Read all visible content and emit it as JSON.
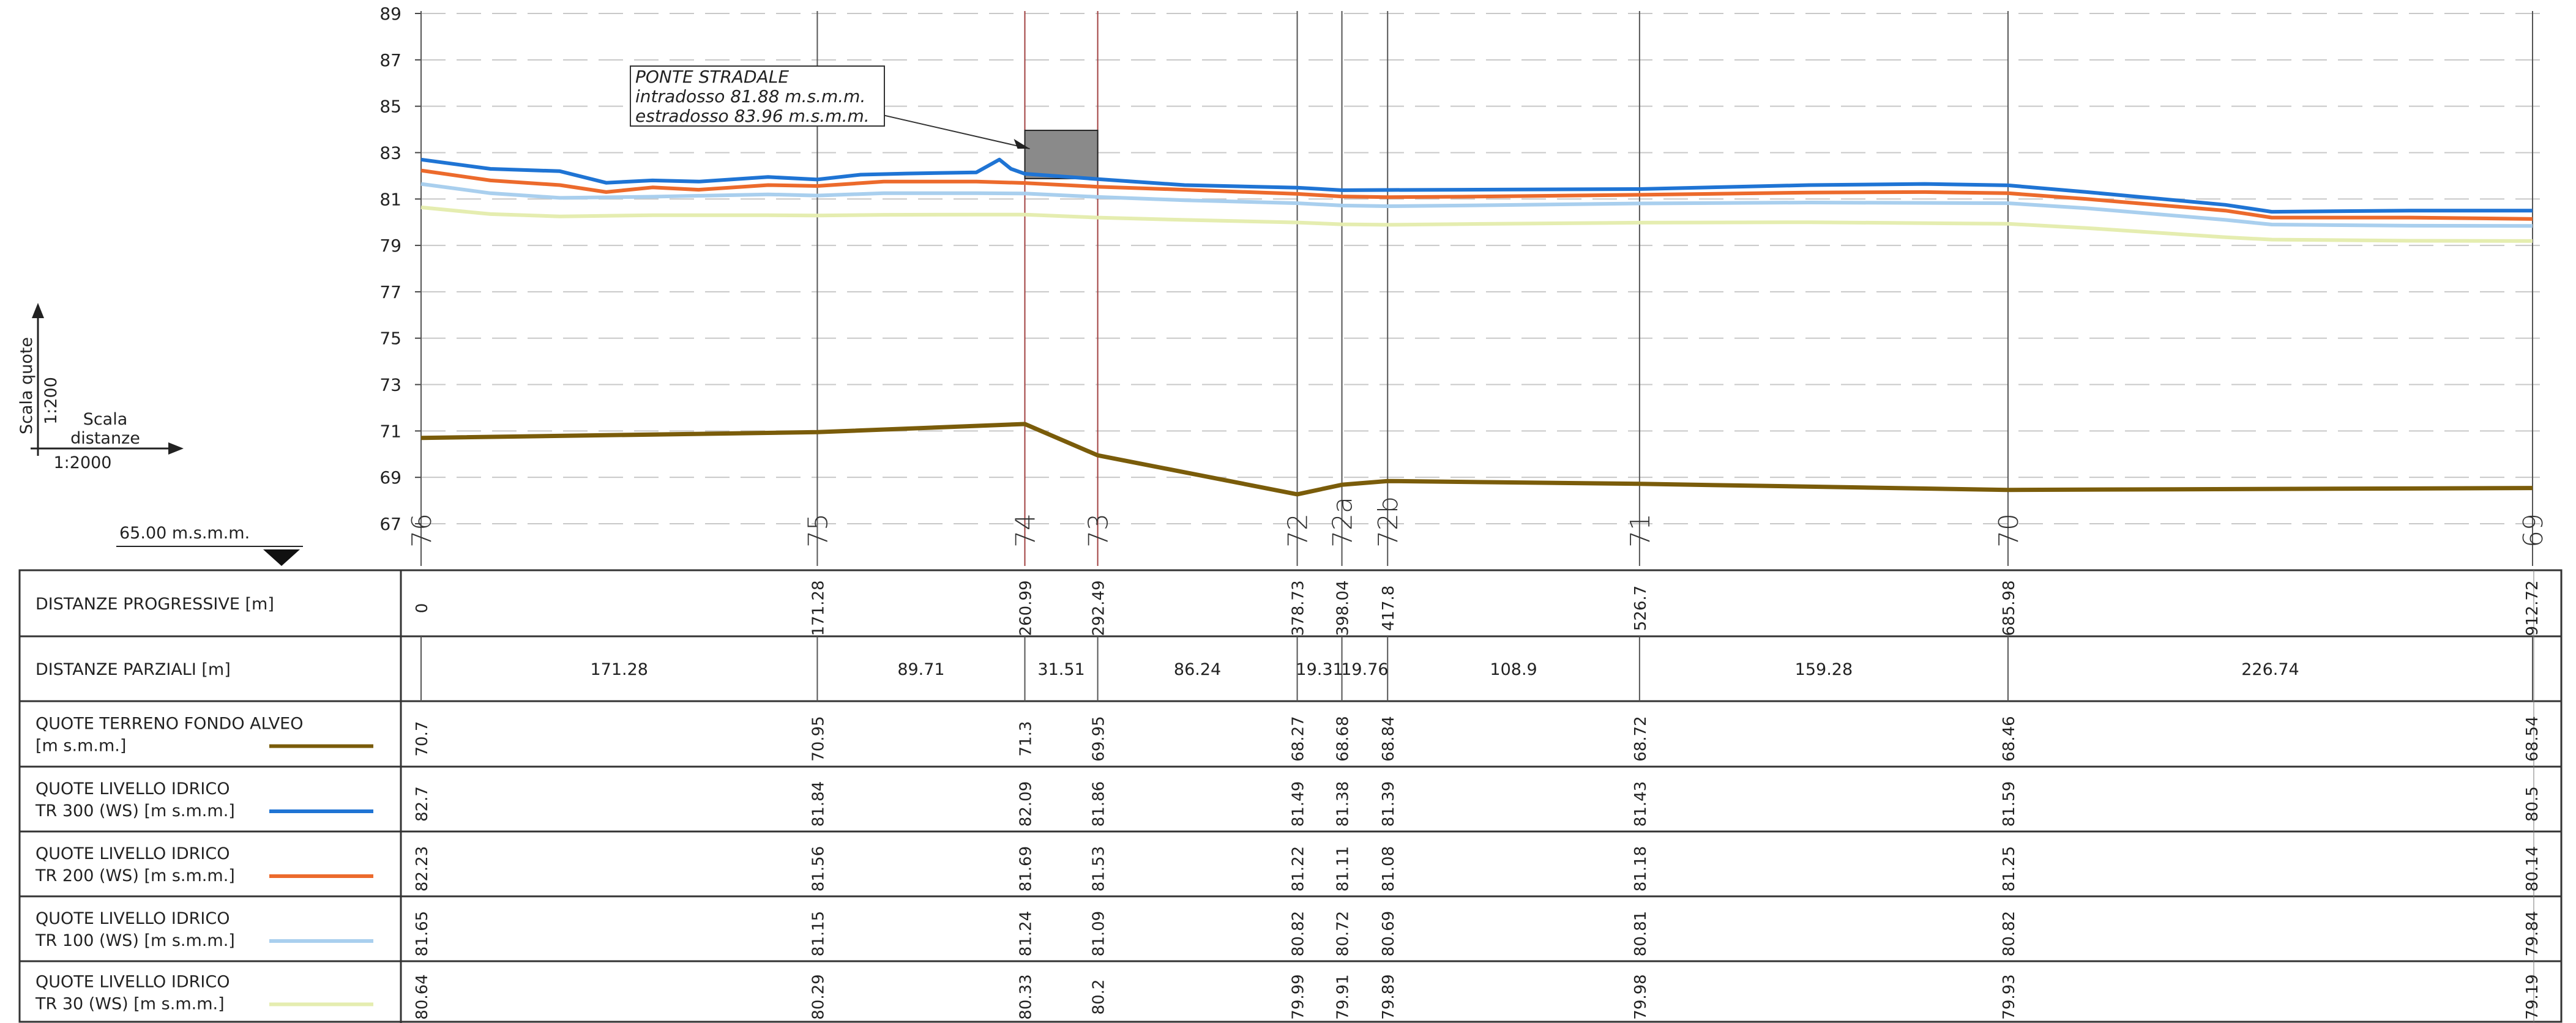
{
  "scale_legend": {
    "vertical_label": "Scala quote",
    "vertical_scale": "1:200",
    "horizontal_label_1": "Scala",
    "horizontal_label_2": "distanze",
    "horizontal_scale": "1:2000"
  },
  "datum": {
    "label": "65.00 m.s.m.m."
  },
  "bridge_note": {
    "line1": "PONTE STRADALE",
    "line2": "intradosso 81.88 m.s.m.m.",
    "line3": "estradosso 83.96 m.s.m.m."
  },
  "colors": {
    "terrain": "#7a5c0a",
    "tr300": "#1f74d4",
    "tr200": "#ec6a2c",
    "tr100": "#a9cfee",
    "tr30": "#e5edb0",
    "bridge": "#8a8a8a",
    "section_line_bridge": "#a04040"
  },
  "chart_data": {
    "type": "line",
    "title": "",
    "xlabel": "",
    "ylabel": "",
    "y_ticks": [
      67,
      69,
      71,
      73,
      75,
      77,
      79,
      81,
      83,
      85,
      87,
      89
    ],
    "ylim": [
      66,
      89
    ],
    "xlim": [
      0,
      912.72
    ],
    "grid": true,
    "sections": [
      {
        "name": "76",
        "x": 0
      },
      {
        "name": "75",
        "x": 171.28
      },
      {
        "name": "74",
        "x": 260.99
      },
      {
        "name": "73",
        "x": 292.49
      },
      {
        "name": "72",
        "x": 378.73
      },
      {
        "name": "72a",
        "x": 398.04
      },
      {
        "name": "72b",
        "x": 417.8
      },
      {
        "name": "71",
        "x": 526.7
      },
      {
        "name": "70",
        "x": 685.98
      },
      {
        "name": "69",
        "x": 912.72
      }
    ],
    "bridge": {
      "x_start": 260.99,
      "x_end": 292.49,
      "intradosso": 81.88,
      "estradosso": 83.96
    },
    "series": [
      {
        "key": "terrain",
        "x": [
          0,
          171.28,
          260.99,
          292.49,
          378.73,
          398.04,
          417.8,
          526.7,
          685.98,
          912.72
        ],
        "values": [
          70.7,
          70.95,
          71.3,
          69.95,
          68.27,
          68.68,
          68.84,
          68.72,
          68.46,
          68.54
        ]
      },
      {
        "key": "tr300",
        "x": [
          0,
          30,
          60,
          80,
          100,
          120,
          150,
          171.28,
          190,
          210,
          240,
          250,
          255,
          260.99,
          292.49,
          330,
          378.73,
          398.04,
          417.8,
          450,
          526.7,
          600,
          650,
          685.98,
          720,
          780,
          800,
          860,
          900,
          912.72
        ],
        "values": [
          82.7,
          82.3,
          82.2,
          81.7,
          81.8,
          81.75,
          81.95,
          81.84,
          82.05,
          82.1,
          82.15,
          82.7,
          82.3,
          82.09,
          81.86,
          81.6,
          81.49,
          81.38,
          81.39,
          81.4,
          81.43,
          81.6,
          81.65,
          81.59,
          81.3,
          80.75,
          80.45,
          80.5,
          80.5,
          80.5
        ]
      },
      {
        "key": "tr200",
        "x": [
          0,
          30,
          60,
          80,
          100,
          120,
          150,
          171.28,
          200,
          240,
          260.99,
          292.49,
          330,
          378.73,
          398.04,
          417.8,
          450,
          526.7,
          600,
          650,
          685.98,
          720,
          780,
          800,
          860,
          912.72
        ],
        "values": [
          82.23,
          81.8,
          81.6,
          81.3,
          81.5,
          81.4,
          81.6,
          81.56,
          81.75,
          81.75,
          81.69,
          81.53,
          81.4,
          81.22,
          81.11,
          81.08,
          81.1,
          81.18,
          81.28,
          81.3,
          81.25,
          81.0,
          80.5,
          80.2,
          80.2,
          80.14
        ]
      },
      {
        "key": "tr100",
        "x": [
          0,
          30,
          60,
          100,
          150,
          171.28,
          200,
          240,
          260.99,
          292.49,
          330,
          378.73,
          398.04,
          417.8,
          450,
          526.7,
          600,
          685.98,
          720,
          780,
          800,
          860,
          912.72
        ],
        "values": [
          81.65,
          81.25,
          81.05,
          81.1,
          81.2,
          81.15,
          81.25,
          81.25,
          81.24,
          81.09,
          80.95,
          80.82,
          80.72,
          80.69,
          80.72,
          80.81,
          80.85,
          80.82,
          80.6,
          80.1,
          79.9,
          79.85,
          79.84
        ]
      },
      {
        "key": "tr30",
        "x": [
          0,
          30,
          60,
          100,
          150,
          171.28,
          200,
          240,
          260.99,
          292.49,
          330,
          378.73,
          398.04,
          417.8,
          450,
          526.7,
          600,
          685.98,
          720,
          780,
          800,
          860,
          912.72
        ],
        "values": [
          80.64,
          80.35,
          80.25,
          80.3,
          80.3,
          80.29,
          80.32,
          80.33,
          80.33,
          80.2,
          80.1,
          79.99,
          79.91,
          79.89,
          79.92,
          79.98,
          80.0,
          79.93,
          79.75,
          79.35,
          79.25,
          79.2,
          79.19
        ]
      }
    ]
  },
  "table": {
    "rows": [
      {
        "key": "dist_prog",
        "label1": "DISTANZE PROGRESSIVE [m]",
        "label2": "",
        "swatch": null,
        "values": [
          "0",
          "171.28",
          "260.99",
          "292.49",
          "378.73",
          "398.04",
          "417.8",
          "526.7",
          "685.98",
          "912.72"
        ]
      },
      {
        "key": "dist_parz",
        "label1": "DISTANZE PARZIALI [m]",
        "label2": "",
        "swatch": null,
        "values": [
          "171.28",
          "89.71",
          "31.51",
          "86.24",
          "19.31",
          "19.76",
          "108.9",
          "159.28",
          "226.74"
        ]
      },
      {
        "key": "terrain",
        "label1": "QUOTE TERRENO FONDO ALVEO",
        "label2": "[m s.m.m.]",
        "swatch": "#7a5c0a",
        "values": [
          "70.7",
          "70.95",
          "71.3",
          "69.95",
          "68.27",
          "68.68",
          "68.84",
          "68.72",
          "68.46",
          "68.54"
        ]
      },
      {
        "key": "tr300",
        "label1": "QUOTE LIVELLO IDRICO",
        "label2": "TR 300 (WS) [m s.m.m.]",
        "swatch": "#1f74d4",
        "values": [
          "82.7",
          "81.84",
          "82.09",
          "81.86",
          "81.49",
          "81.38",
          "81.39",
          "81.43",
          "81.59",
          "80.5"
        ]
      },
      {
        "key": "tr200",
        "label1": "QUOTE LIVELLO IDRICO",
        "label2": "TR 200 (WS) [m s.m.m.]",
        "swatch": "#ec6a2c",
        "values": [
          "82.23",
          "81.56",
          "81.69",
          "81.53",
          "81.22",
          "81.11",
          "81.08",
          "81.18",
          "81.25",
          "80.14"
        ]
      },
      {
        "key": "tr100",
        "label1": "QUOTE LIVELLO IDRICO",
        "label2": "TR 100 (WS) [m s.m.m.]",
        "swatch": "#a9cfee",
        "values": [
          "81.65",
          "81.15",
          "81.24",
          "81.09",
          "80.82",
          "80.72",
          "80.69",
          "80.81",
          "80.82",
          "79.84"
        ]
      },
      {
        "key": "tr30",
        "label1": "QUOTE LIVELLO IDRICO",
        "label2": "TR 30 (WS) [m s.m.m.]",
        "swatch": "#e5edb0",
        "values": [
          "80.64",
          "80.29",
          "80.33",
          "80.2",
          "79.99",
          "79.91",
          "79.89",
          "79.98",
          "79.93",
          "79.19"
        ]
      }
    ]
  }
}
